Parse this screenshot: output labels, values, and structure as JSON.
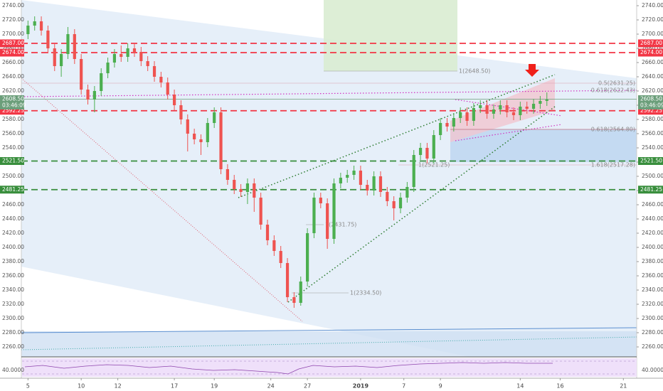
{
  "chart_data": {
    "type": "candlestick",
    "open": [
      2700,
      2712,
      2718,
      2705,
      2680,
      2655,
      2672,
      2700,
      2665,
      2622,
      2608,
      2620,
      2645,
      2660,
      2672,
      2668,
      2680,
      2675,
      2662,
      2655,
      2640,
      2632,
      2615,
      2600,
      2580,
      2560,
      2552,
      2548,
      2575,
      2590,
      2510,
      2495,
      2482,
      2478,
      2490,
      2470,
      2432,
      2410,
      2395,
      2378,
      2330,
      2322,
      2352,
      2420,
      2470,
      2462,
      2412,
      2490,
      2498,
      2502,
      2508,
      2488,
      2480,
      2500,
      2478,
      2465,
      2455,
      2470,
      2485,
      2530,
      2540,
      2525,
      2558,
      2575,
      2570,
      2582,
      2590,
      2578,
      2596,
      2600,
      2588,
      2594,
      2600,
      2590,
      2586,
      2598,
      2595,
      2602,
      2606
    ],
    "high": [
      2719,
      2725,
      2725,
      2712,
      2687,
      2679,
      2710,
      2707,
      2672,
      2629,
      2627,
      2652,
      2667,
      2679,
      2684,
      2687,
      2687,
      2682,
      2669,
      2662,
      2647,
      2639,
      2622,
      2607,
      2587,
      2567,
      2559,
      2582,
      2597,
      2597,
      2517,
      2502,
      2489,
      2497,
      2497,
      2477,
      2439,
      2417,
      2402,
      2385,
      2337,
      2359,
      2427,
      2477,
      2477,
      2469,
      2497,
      2505,
      2509,
      2515,
      2515,
      2495,
      2507,
      2507,
      2485,
      2472,
      2477,
      2492,
      2537,
      2547,
      2547,
      2565,
      2582,
      2582,
      2589,
      2597,
      2597,
      2603,
      2607,
      2607,
      2601,
      2607,
      2607,
      2597,
      2605,
      2605,
      2609,
      2613,
      2618
    ],
    "low": [
      2693,
      2705,
      2698,
      2673,
      2648,
      2640,
      2665,
      2658,
      2615,
      2601,
      2590,
      2613,
      2638,
      2653,
      2661,
      2661,
      2668,
      2655,
      2648,
      2633,
      2625,
      2608,
      2593,
      2573,
      2535,
      2545,
      2530,
      2541,
      2568,
      2503,
      2488,
      2475,
      2471,
      2461,
      2450,
      2425,
      2403,
      2388,
      2371,
      2323,
      2315,
      2318,
      2345,
      2413,
      2455,
      2398,
      2405,
      2483,
      2491,
      2495,
      2481,
      2473,
      2473,
      2471,
      2458,
      2438,
      2448,
      2463,
      2478,
      2523,
      2518,
      2518,
      2551,
      2563,
      2563,
      2575,
      2571,
      2571,
      2589,
      2581,
      2581,
      2587,
      2583,
      2579,
      2579,
      2588,
      2588,
      2595,
      2599
    ],
    "close": [
      2712,
      2718,
      2705,
      2680,
      2655,
      2672,
      2700,
      2665,
      2622,
      2608,
      2620,
      2645,
      2660,
      2672,
      2668,
      2680,
      2675,
      2662,
      2655,
      2640,
      2632,
      2615,
      2600,
      2580,
      2560,
      2552,
      2548,
      2575,
      2590,
      2510,
      2495,
      2482,
      2478,
      2490,
      2470,
      2432,
      2410,
      2395,
      2378,
      2330,
      2322,
      2352,
      2420,
      2470,
      2462,
      2412,
      2490,
      2498,
      2502,
      2508,
      2488,
      2480,
      2500,
      2478,
      2465,
      2455,
      2470,
      2485,
      2530,
      2540,
      2525,
      2558,
      2575,
      2570,
      2582,
      2590,
      2578,
      2596,
      2600,
      2588,
      2594,
      2600,
      2590,
      2586,
      2598,
      2595,
      2602,
      2606,
      2608
    ],
    "up_color": "#4caf50",
    "down_color": "#ef5350",
    "xlim": [
      -1,
      91.5
    ],
    "xticks": [
      {
        "value": 0,
        "label": "5"
      },
      {
        "value": 8,
        "label": "10"
      },
      {
        "value": 13.5,
        "label": "12"
      },
      {
        "value": 22,
        "label": "17"
      },
      {
        "value": 28,
        "label": "19"
      },
      {
        "value": 36.5,
        "label": "24"
      },
      {
        "value": 42,
        "label": "27"
      },
      {
        "value": 50,
        "label": "2019"
      },
      {
        "value": 56.5,
        "label": "7"
      },
      {
        "value": 62,
        "label": "9"
      },
      {
        "value": 74,
        "label": "14"
      },
      {
        "value": 80,
        "label": "16"
      },
      {
        "value": 89.5,
        "label": "21"
      }
    ],
    "ylim": [
      2260,
      2740
    ],
    "yticks": [
      {
        "value": 2260,
        "label": "2260.00"
      },
      {
        "value": 2280,
        "label": "2280.00"
      },
      {
        "value": 2300,
        "label": "2300.00"
      },
      {
        "value": 2320,
        "label": "2320.00"
      },
      {
        "value": 2340,
        "label": "2340.00"
      },
      {
        "value": 2360,
        "label": "2360.00"
      },
      {
        "value": 2380,
        "label": "2380.00"
      },
      {
        "value": 2400,
        "label": "2400.00"
      },
      {
        "value": 2420,
        "label": "2420.00"
      },
      {
        "value": 2440,
        "label": "2440.00"
      },
      {
        "value": 2460,
        "label": "2460.00"
      },
      {
        "value": 2480,
        "label": "2480.00"
      },
      {
        "value": 2500,
        "label": "2500.00"
      },
      {
        "value": 2520,
        "label": "2520.00"
      },
      {
        "value": 2540,
        "label": "2540.00"
      },
      {
        "value": 2560,
        "label": "2560.00"
      },
      {
        "value": 2580,
        "label": "2580.00"
      },
      {
        "value": 2600,
        "label": "2600.00"
      },
      {
        "value": 2620,
        "label": "2620.00"
      },
      {
        "value": 2640,
        "label": "2640.00"
      },
      {
        "value": 2660,
        "label": "2660.00"
      },
      {
        "value": 2680,
        "label": "2680.00"
      },
      {
        "value": 2700,
        "label": "2700.00"
      },
      {
        "value": 2720,
        "label": "2720.00"
      },
      {
        "value": 2740,
        "label": "2740.00"
      }
    ],
    "levels": [
      {
        "value": 2687,
        "label": "2687.00",
        "color": "#f23645"
      },
      {
        "value": 2674,
        "label": "2674.00",
        "color": "#f23645"
      },
      {
        "value": 2592.25,
        "label": "2592.25",
        "color": "#f23645"
      },
      {
        "value": 2521.5,
        "label": "2521.50",
        "color": "#388e3c"
      },
      {
        "value": 2481.25,
        "label": "2481.25",
        "color": "#388e3c"
      }
    ],
    "last_price": {
      "value": 2608.5,
      "label": "2608.50",
      "countdown": "03:46:09",
      "color": "#6b9e7a"
    },
    "annotations": [
      "1(2648.50)",
      "1(2431.75)",
      "1(2334.50)",
      "0.5(2631.25)",
      "0.618(2622.43)",
      "0.618(2564.80)",
      "1(2521.25)",
      "1.618(2517.28)"
    ],
    "rsi_label": "40.0000"
  }
}
